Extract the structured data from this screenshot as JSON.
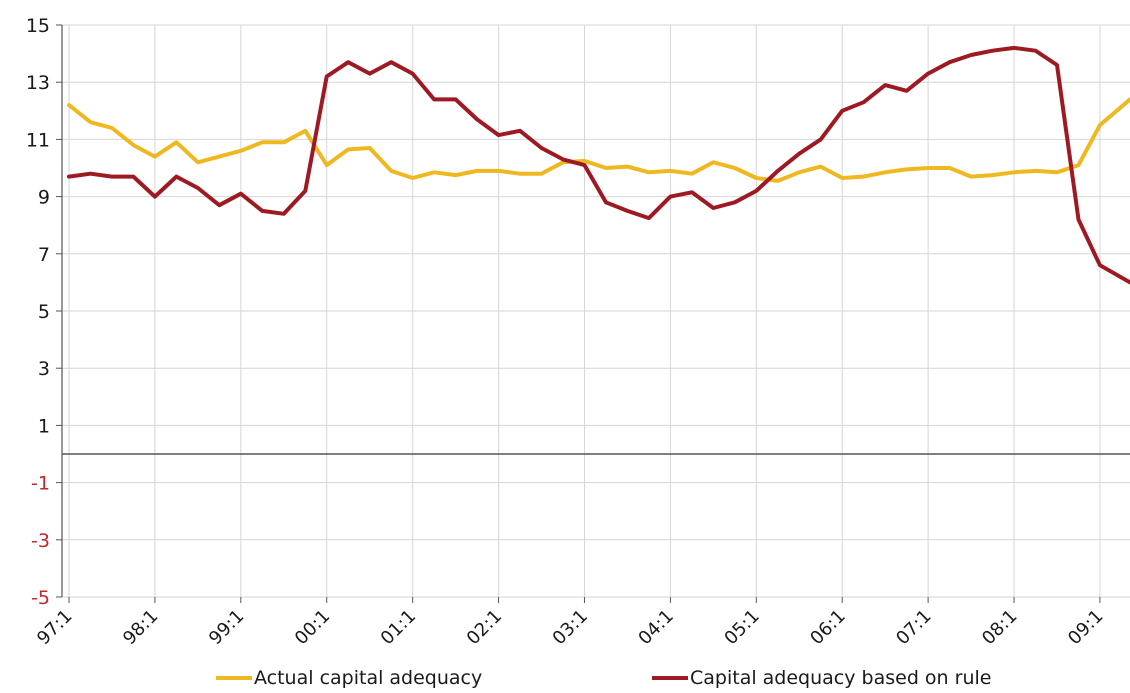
{
  "chart_data": {
    "type": "line",
    "title": "",
    "xlabel": "",
    "ylabel": "",
    "ylim": [
      -5,
      15
    ],
    "y_ticks": [
      15,
      13,
      11,
      9,
      7,
      5,
      3,
      1,
      -1,
      -3,
      -5
    ],
    "x_tick_labels": [
      "97:1",
      "98:1",
      "99:1",
      "00:1",
      "01:1",
      "02:1",
      "03:1",
      "04:1",
      "05:1",
      "06:1",
      "07:1",
      "08:1",
      "09:1"
    ],
    "x_range": [
      1997.0,
      2009.35
    ],
    "grid": true,
    "legend_position": "bottom",
    "negative_tick_color": "#c0282d",
    "series": [
      {
        "name": "Actual capital adequacy",
        "color": "#f0b820",
        "x": [
          1997.0,
          1997.25,
          1997.5,
          1997.75,
          1998.0,
          1998.25,
          1998.5,
          1998.75,
          1999.0,
          1999.25,
          1999.5,
          1999.75,
          2000.0,
          2000.25,
          2000.5,
          2000.75,
          2001.0,
          2001.25,
          2001.5,
          2001.75,
          2002.0,
          2002.25,
          2002.5,
          2002.75,
          2003.0,
          2003.25,
          2003.5,
          2003.75,
          2004.0,
          2004.25,
          2004.5,
          2004.75,
          2005.0,
          2005.25,
          2005.5,
          2005.75,
          2006.0,
          2006.25,
          2006.5,
          2006.75,
          2007.0,
          2007.25,
          2007.5,
          2007.75,
          2008.0,
          2008.25,
          2008.5,
          2008.75,
          2009.0,
          2009.35
        ],
        "values": [
          12.2,
          11.6,
          11.4,
          10.8,
          10.4,
          10.9,
          10.2,
          10.4,
          10.6,
          10.9,
          10.9,
          11.3,
          10.1,
          10.65,
          10.7,
          9.9,
          9.65,
          9.85,
          9.75,
          9.9,
          9.9,
          9.8,
          9.8,
          10.2,
          10.25,
          10.0,
          10.05,
          9.85,
          9.9,
          9.8,
          10.2,
          10.0,
          9.65,
          9.55,
          9.85,
          10.05,
          9.65,
          9.7,
          9.85,
          9.95,
          10.0,
          10.0,
          9.7,
          9.75,
          9.85,
          9.9,
          9.85,
          10.1,
          11.5,
          12.4
        ]
      },
      {
        "name": "Capital adequacy based on rule",
        "color": "#9e1a22",
        "x": [
          1997.0,
          1997.25,
          1997.5,
          1997.75,
          1998.0,
          1998.25,
          1998.5,
          1998.75,
          1999.0,
          1999.25,
          1999.5,
          1999.75,
          2000.0,
          2000.25,
          2000.5,
          2000.75,
          2001.0,
          2001.25,
          2001.5,
          2001.75,
          2002.0,
          2002.25,
          2002.5,
          2002.75,
          2003.0,
          2003.25,
          2003.5,
          2003.75,
          2004.0,
          2004.25,
          2004.5,
          2004.75,
          2005.0,
          2005.25,
          2005.5,
          2005.75,
          2006.0,
          2006.25,
          2006.5,
          2006.75,
          2007.0,
          2007.25,
          2007.5,
          2007.75,
          2008.0,
          2008.25,
          2008.5,
          2008.75,
          2009.0,
          2009.35
        ],
        "values": [
          9.7,
          9.8,
          9.7,
          9.7,
          9.0,
          9.7,
          9.3,
          8.7,
          9.1,
          8.5,
          8.4,
          9.2,
          13.2,
          13.7,
          13.3,
          13.7,
          13.3,
          12.4,
          12.4,
          11.7,
          11.15,
          11.3,
          10.7,
          10.3,
          10.1,
          8.8,
          8.5,
          8.25,
          9.0,
          9.15,
          8.6,
          8.8,
          9.2,
          9.9,
          10.5,
          11.0,
          12.0,
          12.3,
          12.9,
          12.7,
          13.3,
          13.7,
          13.95,
          14.1,
          14.2,
          14.1,
          13.6,
          8.2,
          6.6,
          6.0
        ]
      }
    ]
  }
}
